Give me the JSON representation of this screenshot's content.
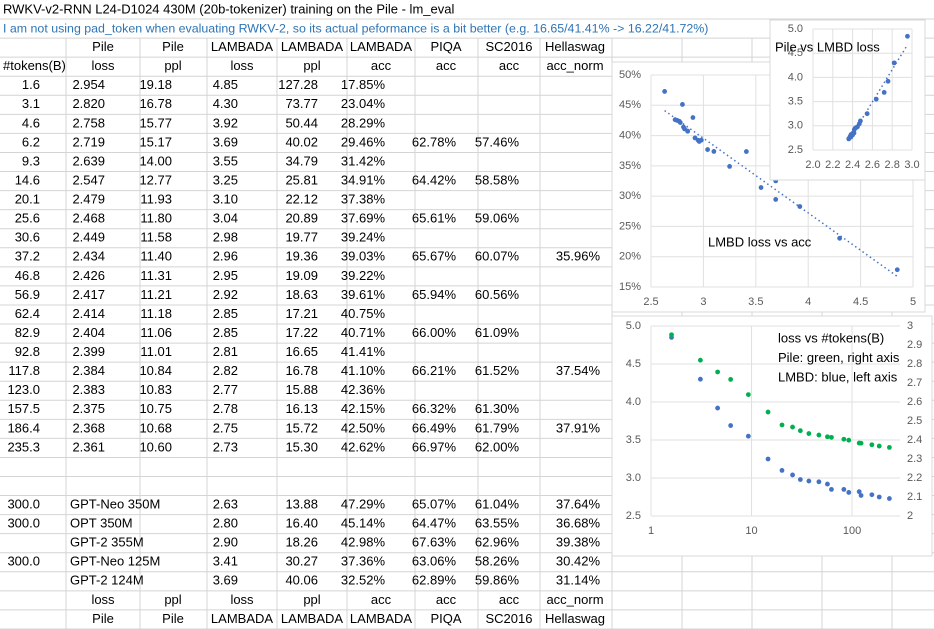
{
  "header": {
    "title": "RWKV-v2-RNN L24-D1024 430M (20b-tokenizer) training on the Pile - lm_eval",
    "note": "I am not using pad_token when evaluating RWKV-2, so its actual peformance is a bit better (e.g. 16.65/41.41% -> 16.22/41.72%)"
  },
  "table": {
    "header_rows": [
      [
        null,
        "Pile",
        "Pile",
        "LAMBADA",
        "LAMBADA",
        "LAMBADA",
        "PIQA",
        "SC2016",
        "Hellaswag"
      ],
      [
        "#tokens(B)",
        "loss",
        "ppl",
        "loss",
        "ppl",
        "acc",
        "acc",
        "acc",
        "acc_norm"
      ]
    ],
    "rows": [
      [
        "1.6",
        "2.954",
        "19.18",
        "4.85",
        "127.28",
        "17.85%",
        null,
        null,
        null
      ],
      [
        "3.1",
        "2.820",
        "16.78",
        "4.30",
        "73.77",
        "23.04%",
        null,
        null,
        null
      ],
      [
        "4.6",
        "2.758",
        "15.77",
        "3.92",
        "50.44",
        "28.29%",
        null,
        null,
        null
      ],
      [
        "6.2",
        "2.719",
        "15.17",
        "3.69",
        "40.02",
        "29.46%",
        "62.78%",
        "57.46%",
        null
      ],
      [
        "9.3",
        "2.639",
        "14.00",
        "3.55",
        "34.79",
        "31.42%",
        null,
        null,
        null
      ],
      [
        "14.6",
        "2.547",
        "12.77",
        "3.25",
        "25.81",
        "34.91%",
        "64.42%",
        "58.58%",
        null
      ],
      [
        "20.1",
        "2.479",
        "11.93",
        "3.10",
        "22.12",
        "37.38%",
        null,
        null,
        null
      ],
      [
        "25.6",
        "2.468",
        "11.80",
        "3.04",
        "20.89",
        "37.69%",
        "65.61%",
        "59.06%",
        null
      ],
      [
        "30.6",
        "2.449",
        "11.58",
        "2.98",
        "19.77",
        "39.24%",
        null,
        null,
        null
      ],
      [
        "37.2",
        "2.434",
        "11.40",
        "2.96",
        "19.36",
        "39.03%",
        "65.67%",
        "60.07%",
        "35.96%"
      ],
      [
        "46.8",
        "2.426",
        "11.31",
        "2.95",
        "19.09",
        "39.22%",
        null,
        null,
        null
      ],
      [
        "56.9",
        "2.417",
        "11.21",
        "2.92",
        "18.63",
        "39.61%",
        "65.94%",
        "60.56%",
        null
      ],
      [
        "62.4",
        "2.414",
        "11.18",
        "2.85",
        "17.21",
        "40.75%",
        null,
        null,
        null
      ],
      [
        "82.9",
        "2.404",
        "11.06",
        "2.85",
        "17.22",
        "40.71%",
        "66.00%",
        "61.09%",
        null
      ],
      [
        "92.8",
        "2.399",
        "11.01",
        "2.81",
        "16.65",
        "41.41%",
        null,
        null,
        null
      ],
      [
        "117.8",
        "2.384",
        "10.84",
        "2.82",
        "16.78",
        "41.10%",
        "66.21%",
        "61.52%",
        "37.54%"
      ],
      [
        "123.0",
        "2.383",
        "10.83",
        "2.77",
        "15.88",
        "42.36%",
        null,
        null,
        null
      ],
      [
        "157.5",
        "2.375",
        "10.75",
        "2.78",
        "16.13",
        "42.15%",
        "66.32%",
        "61.30%",
        null
      ],
      [
        "186.4",
        "2.368",
        "10.68",
        "2.75",
        "15.72",
        "42.50%",
        "66.49%",
        "61.79%",
        "37.91%"
      ],
      [
        "235.3",
        "2.361",
        "10.60",
        "2.73",
        "15.30",
        "42.62%",
        "66.97%",
        "62.00%",
        null
      ]
    ],
    "model_rows": [
      [
        "300.0",
        "GPT-Neo 350M",
        null,
        "2.63",
        "13.88",
        "47.29%",
        "65.07%",
        "61.04%",
        "37.64%"
      ],
      [
        "300.0",
        "OPT 350M",
        null,
        "2.80",
        "16.40",
        "45.14%",
        "64.47%",
        "63.55%",
        "36.68%"
      ],
      [
        null,
        "GPT-2 355M",
        null,
        "2.90",
        "18.26",
        "42.98%",
        "67.63%",
        "62.96%",
        "39.38%"
      ],
      [
        "300.0",
        "GPT-Neo 125M",
        null,
        "3.41",
        "30.27",
        "37.36%",
        "63.06%",
        "58.26%",
        "30.42%"
      ],
      [
        null,
        "GPT-2 124M",
        null,
        "3.69",
        "40.06",
        "32.52%",
        "62.89%",
        "59.86%",
        "31.14%"
      ]
    ],
    "footer_rows": [
      [
        null,
        "loss",
        "ppl",
        "loss",
        "ppl",
        "acc",
        "acc",
        "acc",
        "acc_norm"
      ],
      [
        null,
        "Pile",
        "Pile",
        "LAMBADA",
        "LAMBADA",
        "LAMBADA",
        "PIQA",
        "SC2016",
        "Hellaswag"
      ]
    ]
  },
  "chart_data": [
    {
      "type": "scatter",
      "title": "LMBD loss vs acc",
      "x": [
        4.85,
        4.3,
        3.92,
        3.69,
        3.55,
        3.25,
        3.1,
        3.04,
        2.98,
        2.96,
        2.95,
        2.92,
        2.85,
        2.85,
        2.81,
        2.82,
        2.77,
        2.78,
        2.75,
        2.73,
        2.63,
        2.8,
        2.9,
        3.41,
        3.69
      ],
      "values": [
        17.85,
        23.04,
        28.29,
        29.46,
        31.42,
        34.91,
        37.38,
        37.69,
        39.24,
        39.03,
        39.22,
        39.61,
        40.75,
        40.71,
        41.41,
        41.1,
        42.36,
        42.15,
        42.5,
        42.62,
        47.29,
        45.14,
        42.98,
        37.36,
        32.52
      ],
      "color": "#4472c4",
      "xlim": [
        2.5,
        5
      ],
      "xticks": [
        2.5,
        3,
        3.5,
        4,
        4.5,
        5
      ],
      "ylim": [
        15,
        50
      ],
      "yticks": [
        {
          "value": 15,
          "label": "15%"
        },
        {
          "value": 20,
          "label": "20%"
        },
        {
          "value": 25,
          "label": "25%"
        },
        {
          "value": 30,
          "label": "30%"
        },
        {
          "value": 35,
          "label": "35%"
        },
        {
          "value": 40,
          "label": "40%"
        },
        {
          "value": 45,
          "label": "45%"
        },
        {
          "value": 50,
          "label": "50%"
        }
      ],
      "grid": true,
      "trendline": true
    },
    {
      "type": "scatter",
      "title": "Pile vs LMBD loss",
      "x": [
        2.954,
        2.82,
        2.758,
        2.719,
        2.639,
        2.547,
        2.479,
        2.468,
        2.449,
        2.434,
        2.426,
        2.417,
        2.414,
        2.404,
        2.399,
        2.384,
        2.383,
        2.375,
        2.368,
        2.361
      ],
      "values": [
        4.85,
        4.3,
        3.92,
        3.69,
        3.55,
        3.25,
        3.1,
        3.04,
        2.98,
        2.96,
        2.95,
        2.92,
        2.85,
        2.85,
        2.81,
        2.82,
        2.77,
        2.78,
        2.75,
        2.73
      ],
      "color": "#4472c4",
      "xlim": [
        2,
        3
      ],
      "xticks": [
        {
          "value": 2,
          "label": "2.0"
        },
        2.2,
        2.4,
        2.6,
        2.8,
        {
          "value": 3,
          "label": "3.0"
        }
      ],
      "ylim": [
        2.5,
        5
      ],
      "yticks": [
        2.5,
        {
          "value": 3,
          "label": "3.0"
        },
        3.5,
        {
          "value": 4,
          "label": "4.0"
        },
        4.5,
        {
          "value": 5,
          "label": "5.0"
        }
      ],
      "grid": true,
      "trendline": true
    },
    {
      "type": "scatter",
      "annotations": [
        "loss vs #tokens(B)",
        "Pile: green, right axis",
        "LMBD: blue, left axis"
      ],
      "x": [
        1.6,
        3.1,
        4.6,
        6.2,
        9.3,
        14.6,
        20.1,
        25.6,
        30.6,
        37.2,
        46.8,
        56.9,
        62.4,
        82.9,
        92.8,
        117.8,
        123.0,
        157.5,
        186.4,
        235.3
      ],
      "series": [
        {
          "color": "#4472c4",
          "values": [
            4.85,
            4.3,
            3.92,
            3.69,
            3.55,
            3.25,
            3.1,
            3.04,
            2.98,
            2.96,
            2.95,
            2.92,
            2.85,
            2.85,
            2.81,
            2.82,
            2.77,
            2.78,
            2.75,
            2.73
          ]
        },
        {
          "color": "#00b050",
          "axis": "y2",
          "values": [
            2.954,
            2.82,
            2.758,
            2.719,
            2.639,
            2.547,
            2.479,
            2.468,
            2.449,
            2.434,
            2.426,
            2.417,
            2.414,
            2.404,
            2.399,
            2.384,
            2.383,
            2.375,
            2.368,
            2.361
          ]
        }
      ],
      "xlim": [
        1,
        300
      ],
      "xticks": [
        1,
        10,
        100
      ],
      "log_x": true,
      "ylim": [
        2.5,
        5
      ],
      "yticks": [
        2.5,
        {
          "value": 3,
          "label": "3.0"
        },
        3.5,
        {
          "value": 4,
          "label": "4.0"
        },
        4.5,
        {
          "value": 5,
          "label": "5.0"
        }
      ],
      "y2lim": [
        2,
        3
      ],
      "y2ticks": [
        2,
        2.1,
        2.2,
        2.3,
        2.4,
        2.5,
        2.6,
        2.7,
        2.8,
        2.9,
        3
      ],
      "grid": true
    }
  ]
}
